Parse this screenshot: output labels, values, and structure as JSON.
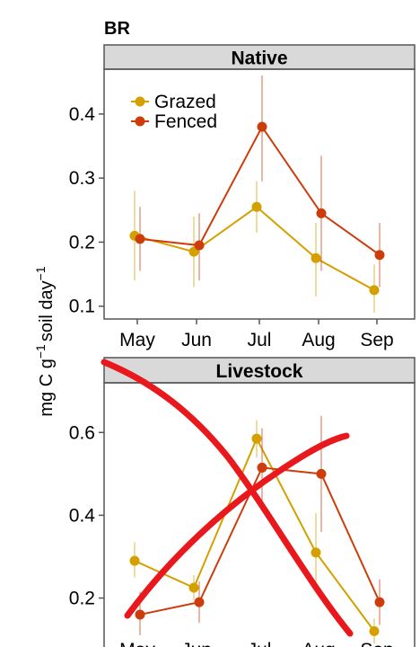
{
  "chart_data": {
    "type": "line",
    "title": "BR",
    "ylabel_parts": {
      "base": "mg C g",
      "exp1": "−1",
      "mid": "soil day",
      "exp2": "−1"
    },
    "x": [
      "May",
      "Jun",
      "Jul",
      "Aug",
      "Sep"
    ],
    "legend": {
      "placement": "top-left",
      "entries": [
        "Grazed",
        "Fenced"
      ]
    },
    "colors": {
      "Grazed": "#D4A000",
      "Fenced": "#CC3D0B",
      "strip_bg": "#D9D9D9",
      "annotation": "#E8181C"
    },
    "panels": [
      {
        "name": "Native",
        "ylim": [
          0.08,
          0.47
        ],
        "yticks": [
          0.1,
          0.2,
          0.3,
          0.4
        ],
        "ytick_labels": [
          "0.1",
          "0.2",
          "0.3",
          "0.4"
        ],
        "series": [
          {
            "name": "Grazed",
            "values": [
              0.21,
              0.185,
              0.255,
              0.175,
              0.125
            ],
            "lower": [
              0.14,
              0.13,
              0.215,
              0.115,
              0.09
            ],
            "upper": [
              0.28,
              0.24,
              0.295,
              0.23,
              0.165
            ]
          },
          {
            "name": "Fenced",
            "values": [
              0.205,
              0.195,
              0.38,
              0.245,
              0.18
            ],
            "lower": [
              0.155,
              0.14,
              0.295,
              0.155,
              0.13
            ],
            "upper": [
              0.255,
              0.245,
              0.46,
              0.335,
              0.23
            ]
          }
        ]
      },
      {
        "name": "Livestock",
        "ylim": [
          0.06,
          0.72
        ],
        "yticks": [
          0.2,
          0.4,
          0.6
        ],
        "ytick_labels": [
          "0.2",
          "0.4",
          "0.6"
        ],
        "series": [
          {
            "name": "Grazed",
            "values": [
              0.29,
              0.225,
              0.585,
              0.31,
              0.12
            ],
            "lower": [
              0.25,
              0.195,
              0.54,
              0.22,
              0.09
            ],
            "upper": [
              0.335,
              0.255,
              0.63,
              0.405,
              0.15
            ]
          },
          {
            "name": "Fenced",
            "values": [
              0.16,
              0.19,
              0.515,
              0.5,
              0.19
            ],
            "lower": [
              0.11,
              0.14,
              0.42,
              0.36,
              0.135
            ],
            "upper": [
              0.215,
              0.24,
              0.61,
              0.64,
              0.245
            ]
          }
        ]
      }
    ]
  }
}
